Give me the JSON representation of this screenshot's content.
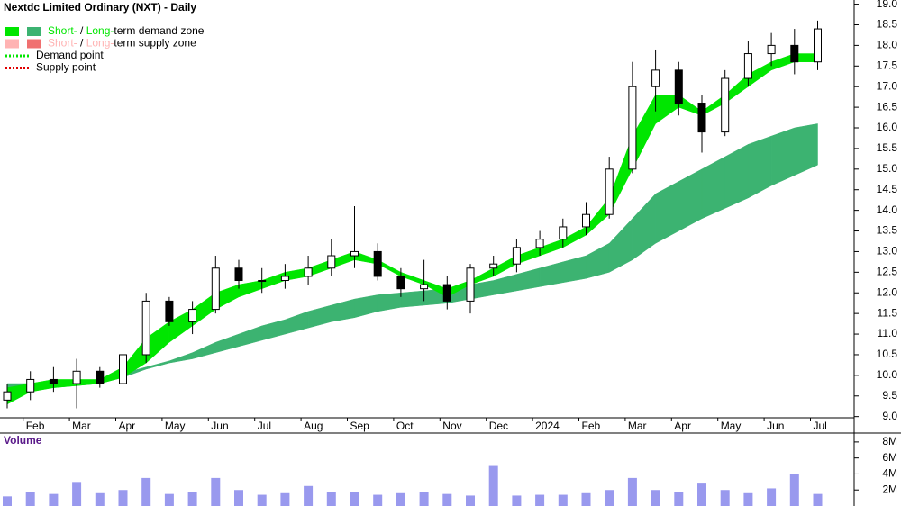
{
  "chart_data": {
    "type": "candlestick",
    "title": "Nextdc Limited Ordinary (NXT) - Daily",
    "volume_title": "Volume",
    "x_labels": [
      "Feb",
      "Mar",
      "Apr",
      "May",
      "Jun",
      "Jul",
      "Aug",
      "Sep",
      "Oct",
      "Nov",
      "Dec",
      "2024",
      "Feb",
      "Mar",
      "Apr",
      "May",
      "Jun",
      "Jul"
    ],
    "legend": [
      {
        "parts": [
          "Short-",
          " / ",
          "Long-",
          "term demand zone"
        ],
        "colors": [
          "#00e600",
          "#3cb371"
        ]
      },
      {
        "parts": [
          "Short-",
          " / ",
          "Long-",
          "term supply zone"
        ],
        "colors": [
          "#ffb3b3",
          "#f07070"
        ]
      },
      {
        "parts": [
          "Demand point"
        ],
        "colors": [
          "#00e600"
        ]
      },
      {
        "parts": [
          "Supply point"
        ],
        "colors": [
          "#e00000"
        ]
      }
    ],
    "ohlc": {
      "open": [
        9.4,
        9.6,
        9.9,
        9.8,
        10.1,
        9.8,
        10.5,
        11.8,
        11.3,
        11.6,
        12.6,
        12.3,
        12.3,
        12.4,
        12.6,
        12.9,
        13.0,
        12.4,
        12.1,
        12.2,
        11.8,
        12.6,
        12.7,
        13.1,
        13.3,
        13.6,
        13.9,
        15.0,
        17.0,
        17.4,
        16.6,
        15.9,
        17.2,
        17.8,
        18.0,
        17.6
      ],
      "high": [
        9.8,
        10.1,
        10.2,
        10.4,
        10.2,
        10.8,
        12.0,
        11.9,
        11.8,
        12.9,
        12.8,
        12.6,
        12.7,
        12.9,
        13.3,
        14.1,
        13.2,
        12.6,
        12.8,
        12.4,
        12.7,
        12.9,
        13.3,
        13.5,
        13.8,
        14.2,
        15.3,
        17.6,
        17.9,
        17.6,
        16.8,
        17.4,
        18.1,
        18.3,
        18.4,
        18.6
      ],
      "low": [
        9.2,
        9.4,
        9.6,
        9.2,
        9.7,
        9.7,
        10.3,
        11.2,
        11.0,
        11.5,
        12.1,
        12.0,
        12.1,
        12.2,
        12.4,
        12.6,
        12.3,
        11.9,
        11.8,
        11.6,
        11.5,
        12.4,
        12.5,
        12.9,
        13.1,
        13.4,
        13.8,
        14.9,
        16.4,
        16.3,
        15.4,
        15.8,
        17.0,
        17.5,
        17.3,
        17.4
      ],
      "close": [
        9.6,
        9.9,
        9.8,
        10.1,
        9.8,
        10.5,
        11.8,
        11.3,
        11.6,
        12.6,
        12.3,
        12.3,
        12.4,
        12.6,
        12.9,
        13.0,
        12.4,
        12.1,
        12.2,
        11.8,
        12.6,
        12.7,
        13.1,
        13.3,
        13.6,
        13.9,
        15.0,
        17.0,
        17.4,
        16.6,
        15.9,
        17.2,
        17.8,
        18.0,
        17.6,
        18.4
      ]
    },
    "zones": [
      {
        "name": "Long-term zone",
        "color": "#3cb371",
        "upper": [
          9.8,
          9.8,
          9.8,
          9.85,
          9.9,
          10.05,
          10.2,
          10.35,
          10.55,
          10.8,
          11.0,
          11.2,
          11.35,
          11.55,
          11.7,
          11.85,
          11.95,
          12.0,
          12.05,
          12.1,
          12.2,
          12.3,
          12.45,
          12.6,
          12.75,
          12.9,
          13.2,
          13.8,
          14.4,
          14.7,
          15.0,
          15.3,
          15.6,
          15.8,
          16.0,
          16.1
        ],
        "lower": [
          9.6,
          9.65,
          9.7,
          9.75,
          9.8,
          9.95,
          10.15,
          10.3,
          10.4,
          10.55,
          10.7,
          10.85,
          11.0,
          11.15,
          11.3,
          11.4,
          11.55,
          11.65,
          11.7,
          11.75,
          11.85,
          11.95,
          12.05,
          12.15,
          12.25,
          12.35,
          12.5,
          12.8,
          13.2,
          13.5,
          13.8,
          14.05,
          14.3,
          14.6,
          14.85,
          15.1
        ]
      },
      {
        "name": "Short-term zone",
        "color": "#00e600",
        "upper": [
          9.7,
          9.8,
          9.9,
          9.9,
          9.9,
          10.2,
          10.9,
          11.3,
          11.6,
          12.0,
          12.2,
          12.3,
          12.5,
          12.6,
          12.8,
          13.0,
          12.8,
          12.5,
          12.3,
          12.1,
          12.3,
          12.6,
          12.9,
          13.1,
          13.3,
          13.6,
          14.3,
          15.8,
          16.8,
          16.8,
          16.4,
          16.8,
          17.3,
          17.6,
          17.8,
          17.8
        ],
        "lower": [
          9.3,
          9.6,
          9.7,
          9.75,
          9.8,
          9.95,
          10.3,
          10.8,
          11.2,
          11.6,
          11.9,
          12.1,
          12.3,
          12.4,
          12.6,
          12.8,
          12.7,
          12.4,
          12.2,
          11.9,
          12.2,
          12.4,
          12.7,
          12.9,
          13.1,
          13.4,
          13.9,
          15.0,
          16.1,
          16.5,
          16.3,
          16.6,
          17.0,
          17.4,
          17.6,
          17.6
        ]
      }
    ],
    "volume": [
      1200000,
      1800000,
      1500000,
      3000000,
      1600000,
      2000000,
      3500000,
      1500000,
      1800000,
      3500000,
      2000000,
      1400000,
      1600000,
      2500000,
      1800000,
      1700000,
      1400000,
      1600000,
      1800000,
      1500000,
      1300000,
      5000000,
      1300000,
      1400000,
      1400000,
      1600000,
      2000000,
      3500000,
      2000000,
      1800000,
      2800000,
      2000000,
      1600000,
      2200000,
      4000000,
      1500000
    ],
    "volume_color": "#9999ee",
    "ylim": [
      8.6,
      19.1
    ],
    "yticks": [
      {
        "value": 9,
        "label": "9.0"
      },
      {
        "value": 9.5,
        "label": "9.5"
      },
      {
        "value": 10,
        "label": "10.0"
      },
      {
        "value": 10.5,
        "label": "10.5"
      },
      {
        "value": 11,
        "label": "11.0"
      },
      {
        "value": 11.5,
        "label": "11.5"
      },
      {
        "value": 12,
        "label": "12.0"
      },
      {
        "value": 12.5,
        "label": "12.5"
      },
      {
        "value": 13,
        "label": "13.0"
      },
      {
        "value": 13.5,
        "label": "13.5"
      },
      {
        "value": 14,
        "label": "14.0"
      },
      {
        "value": 14.5,
        "label": "14.5"
      },
      {
        "value": 15,
        "label": "15.0"
      },
      {
        "value": 15.5,
        "label": "15.5"
      },
      {
        "value": 16,
        "label": "16.0"
      },
      {
        "value": 16.5,
        "label": "16.5"
      },
      {
        "value": 17,
        "label": "17.0"
      },
      {
        "value": 17.5,
        "label": "17.5"
      },
      {
        "value": 18,
        "label": "18.0"
      },
      {
        "value": 18.5,
        "label": "18.5"
      },
      {
        "value": 19,
        "label": "19.0"
      }
    ],
    "volume_ylim": [
      0,
      9000000
    ],
    "volume_ticks": [
      {
        "value": 2000000,
        "label": "2M"
      },
      {
        "value": 4000000,
        "label": "4M"
      },
      {
        "value": 6000000,
        "label": "6M"
      },
      {
        "value": 8000000,
        "label": "8M"
      }
    ]
  }
}
